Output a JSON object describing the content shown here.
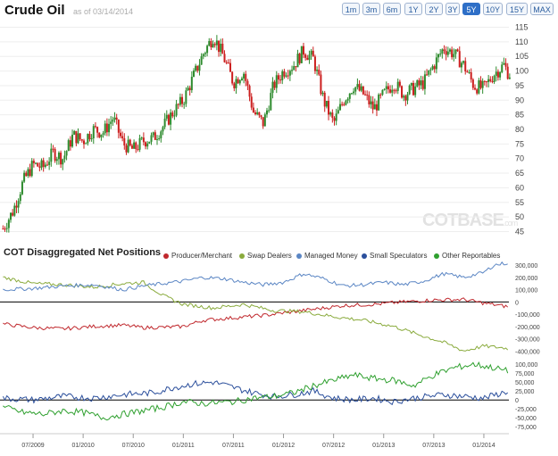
{
  "header": {
    "title": "Crude Oil",
    "asof": "as of 03/14/2014",
    "zoom_buttons": [
      "1m",
      "3m",
      "6m",
      "1Y",
      "2Y",
      "3Y",
      "5Y",
      "10Y",
      "15Y",
      "MAX"
    ],
    "active_zoom": "5Y",
    "accent_color": "#2e6fc7"
  },
  "watermark": {
    "main": "COT",
    "suffix": "BASE",
    "domain": ".com"
  },
  "chart_data": [
    {
      "type": "candlestick",
      "series_name": "Crude Oil",
      "y_ticks": [
        45,
        50,
        55,
        60,
        65,
        70,
        75,
        80,
        85,
        90,
        95,
        100,
        105,
        110,
        115
      ],
      "ylim": [
        43,
        117
      ],
      "up_color": "#2e8b2e",
      "down_color": "#cc1f1f",
      "x_range": [
        "2009-03",
        "2014-03"
      ],
      "close_anchors": [
        [
          2009.2,
          46
        ],
        [
          2009.3,
          52
        ],
        [
          2009.4,
          62
        ],
        [
          2009.5,
          68
        ],
        [
          2009.6,
          67
        ],
        [
          2009.7,
          72
        ],
        [
          2009.8,
          70
        ],
        [
          2009.9,
          78
        ],
        [
          2010.0,
          76
        ],
        [
          2010.1,
          80
        ],
        [
          2010.2,
          79
        ],
        [
          2010.3,
          84
        ],
        [
          2010.4,
          75
        ],
        [
          2010.5,
          73
        ],
        [
          2010.6,
          76
        ],
        [
          2010.7,
          77
        ],
        [
          2010.8,
          81
        ],
        [
          2010.9,
          86
        ],
        [
          2011.0,
          90
        ],
        [
          2011.1,
          98
        ],
        [
          2011.2,
          106
        ],
        [
          2011.3,
          112
        ],
        [
          2011.4,
          105
        ],
        [
          2011.5,
          96
        ],
        [
          2011.6,
          100
        ],
        [
          2011.7,
          86
        ],
        [
          2011.8,
          82
        ],
        [
          2011.9,
          95
        ],
        [
          2012.0,
          100
        ],
        [
          2012.1,
          102
        ],
        [
          2012.2,
          107
        ],
        [
          2012.3,
          104
        ],
        [
          2012.4,
          90
        ],
        [
          2012.5,
          82
        ],
        [
          2012.6,
          90
        ],
        [
          2012.7,
          95
        ],
        [
          2012.8,
          92
        ],
        [
          2012.9,
          87
        ],
        [
          2013.0,
          92
        ],
        [
          2013.1,
          96
        ],
        [
          2013.2,
          92
        ],
        [
          2013.3,
          94
        ],
        [
          2013.4,
          96
        ],
        [
          2013.5,
          102
        ],
        [
          2013.6,
          108
        ],
        [
          2013.7,
          106
        ],
        [
          2013.8,
          102
        ],
        [
          2013.9,
          95
        ],
        [
          2014.0,
          94
        ],
        [
          2014.1,
          99
        ],
        [
          2014.2,
          102
        ],
        [
          2014.25,
          99
        ]
      ]
    },
    {
      "type": "line",
      "title": "COT Disaggregated Net Positions",
      "y_ticks": [
        300000,
        200000,
        100000,
        0,
        -100000,
        -200000,
        -300000,
        -400000
      ],
      "y_tick_labels": [
        "300,000",
        "200,000",
        "100,000",
        "0",
        "-100,000",
        "-200,000",
        "-300,000",
        "-400,000"
      ],
      "ylim": [
        -420000,
        330000
      ],
      "series": [
        {
          "name": "Producer/Merchant",
          "color": "#c0282d",
          "anchors": [
            [
              2009.2,
              -180000
            ],
            [
              2009.5,
              -210000
            ],
            [
              2009.8,
              -220000
            ],
            [
              2010.1,
              -200000
            ],
            [
              2010.4,
              -190000
            ],
            [
              2010.6,
              -210000
            ],
            [
              2010.9,
              -205000
            ],
            [
              2011.0,
              -200000
            ],
            [
              2011.2,
              -150000
            ],
            [
              2011.5,
              -130000
            ],
            [
              2011.8,
              -110000
            ],
            [
              2012.0,
              -90000
            ],
            [
              2012.3,
              -60000
            ],
            [
              2012.6,
              -30000
            ],
            [
              2012.9,
              -20000
            ],
            [
              2013.2,
              0
            ],
            [
              2013.5,
              15000
            ],
            [
              2013.8,
              20000
            ],
            [
              2014.0,
              -10000
            ],
            [
              2014.25,
              -40000
            ]
          ]
        },
        {
          "name": "Swap Dealers",
          "color": "#8aab3d",
          "anchors": [
            [
              2009.2,
              200000
            ],
            [
              2009.5,
              150000
            ],
            [
              2009.8,
              140000
            ],
            [
              2010.1,
              120000
            ],
            [
              2010.4,
              150000
            ],
            [
              2010.6,
              160000
            ],
            [
              2010.8,
              50000
            ],
            [
              2011.0,
              -20000
            ],
            [
              2011.3,
              -50000
            ],
            [
              2011.6,
              -20000
            ],
            [
              2011.9,
              -70000
            ],
            [
              2012.2,
              -80000
            ],
            [
              2012.5,
              -120000
            ],
            [
              2012.8,
              -150000
            ],
            [
              2013.1,
              -200000
            ],
            [
              2013.4,
              -280000
            ],
            [
              2013.6,
              -330000
            ],
            [
              2013.8,
              -400000
            ],
            [
              2014.0,
              -360000
            ],
            [
              2014.25,
              -380000
            ]
          ]
        },
        {
          "name": "Managed Money",
          "color": "#5b86c4",
          "anchors": [
            [
              2009.2,
              100000
            ],
            [
              2009.5,
              110000
            ],
            [
              2009.8,
              130000
            ],
            [
              2010.1,
              140000
            ],
            [
              2010.4,
              100000
            ],
            [
              2010.6,
              130000
            ],
            [
              2010.8,
              150000
            ],
            [
              2011.0,
              170000
            ],
            [
              2011.2,
              200000
            ],
            [
              2011.4,
              190000
            ],
            [
              2011.6,
              160000
            ],
            [
              2011.8,
              140000
            ],
            [
              2012.0,
              160000
            ],
            [
              2012.2,
              230000
            ],
            [
              2012.4,
              190000
            ],
            [
              2012.6,
              130000
            ],
            [
              2012.8,
              140000
            ],
            [
              2013.0,
              160000
            ],
            [
              2013.2,
              140000
            ],
            [
              2013.4,
              170000
            ],
            [
              2013.6,
              230000
            ],
            [
              2013.8,
              200000
            ],
            [
              2014.0,
              240000
            ],
            [
              2014.1,
              300000
            ],
            [
              2014.25,
              320000
            ]
          ]
        },
        {
          "name": "Small Speculators",
          "color": "#2b4f9c",
          "anchors": [
            [
              2009.2,
              5000
            ],
            [
              2009.5,
              0
            ],
            [
              2009.8,
              10000
            ],
            [
              2010.1,
              5000
            ],
            [
              2010.4,
              15000
            ],
            [
              2010.7,
              20000
            ],
            [
              2010.9,
              35000
            ],
            [
              2011.1,
              45000
            ],
            [
              2011.3,
              50000
            ],
            [
              2011.5,
              35000
            ],
            [
              2011.7,
              20000
            ],
            [
              2011.9,
              10000
            ],
            [
              2012.1,
              15000
            ],
            [
              2012.3,
              25000
            ],
            [
              2012.5,
              5000
            ],
            [
              2012.7,
              0
            ],
            [
              2012.9,
              5000
            ],
            [
              2013.1,
              -5000
            ],
            [
              2013.3,
              5000
            ],
            [
              2013.6,
              15000
            ],
            [
              2013.8,
              10000
            ],
            [
              2014.0,
              5000
            ],
            [
              2014.25,
              25000
            ]
          ]
        },
        {
          "name": "Other Reportables",
          "color": "#2fa02f",
          "anchors": [
            [
              2009.2,
              -20000
            ],
            [
              2009.4,
              -35000
            ],
            [
              2009.6,
              -40000
            ],
            [
              2009.8,
              -30000
            ],
            [
              2010.0,
              -35000
            ],
            [
              2010.2,
              -50000
            ],
            [
              2010.4,
              -40000
            ],
            [
              2010.6,
              -30000
            ],
            [
              2010.8,
              -20000
            ],
            [
              2011.0,
              -5000
            ],
            [
              2011.2,
              -10000
            ],
            [
              2011.5,
              -5000
            ],
            [
              2011.7,
              5000
            ],
            [
              2011.9,
              10000
            ],
            [
              2012.1,
              20000
            ],
            [
              2012.3,
              40000
            ],
            [
              2012.5,
              55000
            ],
            [
              2012.7,
              70000
            ],
            [
              2012.9,
              60000
            ],
            [
              2013.1,
              55000
            ],
            [
              2013.3,
              40000
            ],
            [
              2013.5,
              70000
            ],
            [
              2013.7,
              90000
            ],
            [
              2013.9,
              100000
            ],
            [
              2014.1,
              90000
            ],
            [
              2014.25,
              80000
            ]
          ]
        }
      ]
    },
    {
      "type": "line",
      "y_ticks": [
        100000,
        75000,
        50000,
        25000,
        0,
        -25000,
        -50000,
        -75000
      ],
      "y_tick_labels": [
        "100,000",
        "75,000",
        "50,000",
        "25,000",
        "0",
        "-25,000",
        "-50,000",
        "-75,000"
      ],
      "ylim": [
        -82000,
        108000
      ],
      "series_ref": [
        "Small Speculators",
        "Other Reportables"
      ]
    }
  ],
  "x_axis": {
    "labels": [
      "07/2009",
      "01/2010",
      "07/2010",
      "01/2011",
      "07/2011",
      "01/2012",
      "07/2012",
      "01/2013",
      "07/2013",
      "01/2014"
    ],
    "positions": [
      2009.5,
      2010.0,
      2010.5,
      2011.0,
      2011.5,
      2012.0,
      2012.5,
      2013.0,
      2013.5,
      2014.0
    ],
    "xlim": [
      2009.17,
      2014.25
    ]
  }
}
